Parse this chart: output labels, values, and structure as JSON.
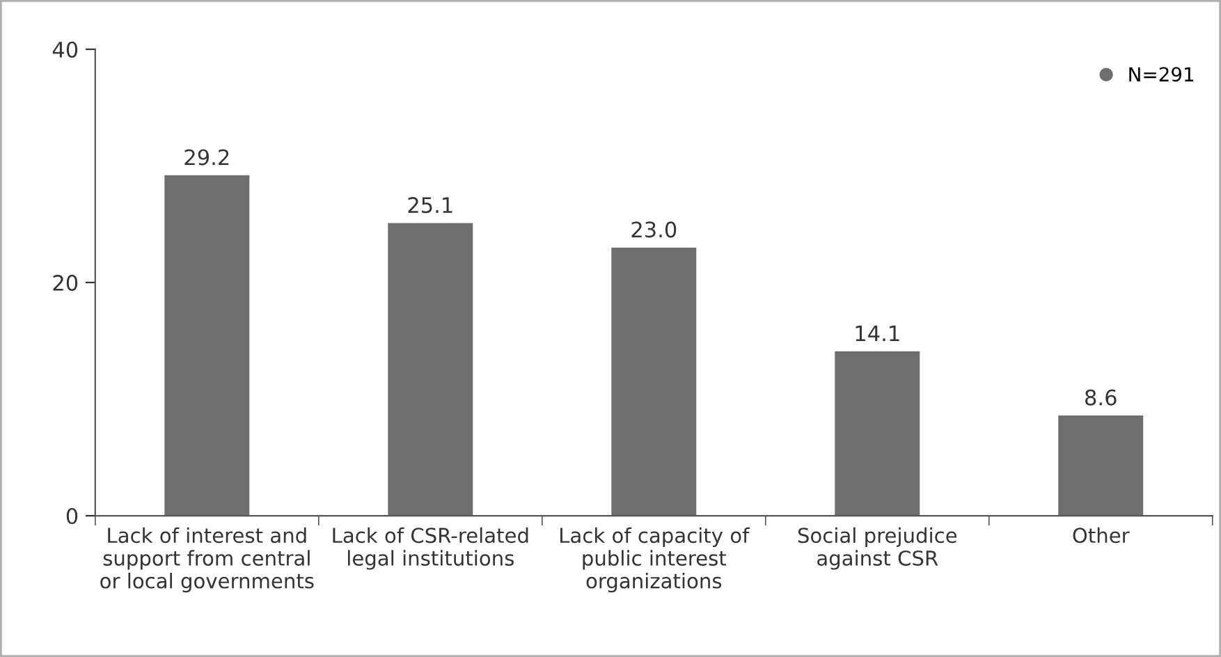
{
  "chart_data": {
    "type": "bar",
    "categories": [
      "Lack of interest and\nsupport from central\nor local governments",
      "Lack of CSR-related\nlegal institutions",
      "Lack of capacity of\npublic interest\norganizations",
      "Social prejudice\nagainst CSR",
      "Other"
    ],
    "series": [
      {
        "name": "N=291",
        "color": "#6e6e6e",
        "values": [
          29.2,
          25.1,
          23.0,
          14.1,
          8.6
        ]
      }
    ],
    "value_labels": [
      "29.2",
      "25.1",
      "23.0",
      "14.1",
      "8.6"
    ],
    "ylim": [
      0,
      40
    ],
    "yticks": [
      0,
      20,
      40
    ],
    "grid": false,
    "legend": "top right"
  }
}
